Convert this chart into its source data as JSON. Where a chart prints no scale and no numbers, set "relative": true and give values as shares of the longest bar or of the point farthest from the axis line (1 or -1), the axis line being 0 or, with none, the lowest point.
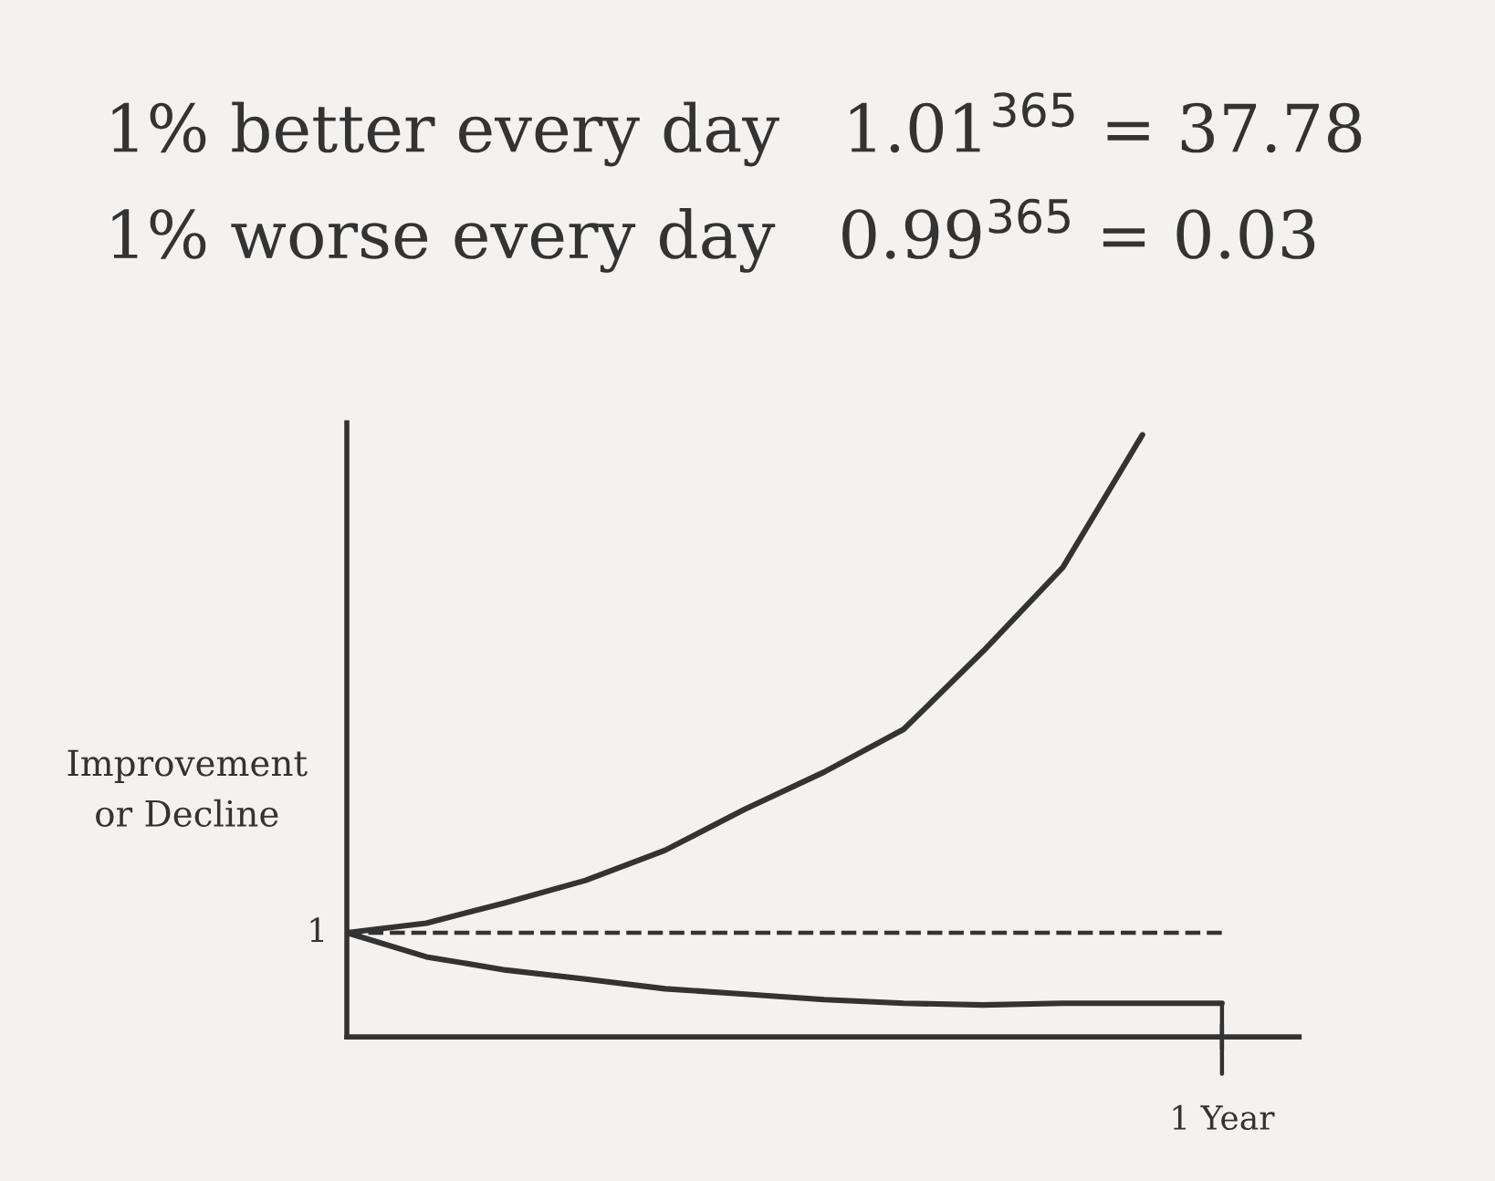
{
  "chart_data": {
    "type": "line",
    "relative": true,
    "title": "1% better every day   1.01$^{365}$ = 37.78",
    "subtitle": "1% worse every day   0.99$^{365}$ = 0.03",
    "ylabel": "Improvement\nor Decline",
    "categories": [
      null,
      null,
      null,
      null,
      null,
      null,
      null,
      null,
      null,
      null,
      null,
      null
    ],
    "series": [
      {
        "color": "#333333",
        "values": [
          0.173,
          0.189,
          0.223,
          0.26,
          0.31,
          0.378,
          0.44,
          0.511,
          0.641,
          0.78,
          1,
          null
        ]
      },
      {
        "color": "#333333",
        "values": [
          0.173,
          0.133,
          0.111,
          0.096,
          0.08,
          0.071,
          0.062,
          0.056,
          0.053,
          0.056,
          0.056,
          0.056
        ]
      }
    ],
    "ref_lines": [
      {
        "axis": "y",
        "value": 0.173,
        "line_style": "dashed",
        "color": "#333333"
      }
    ],
    "annotations": [
      "1",
      "1 Year"
    ],
    "grid": false,
    "legend": false,
    "line_style": "solid",
    "marker": "none"
  }
}
